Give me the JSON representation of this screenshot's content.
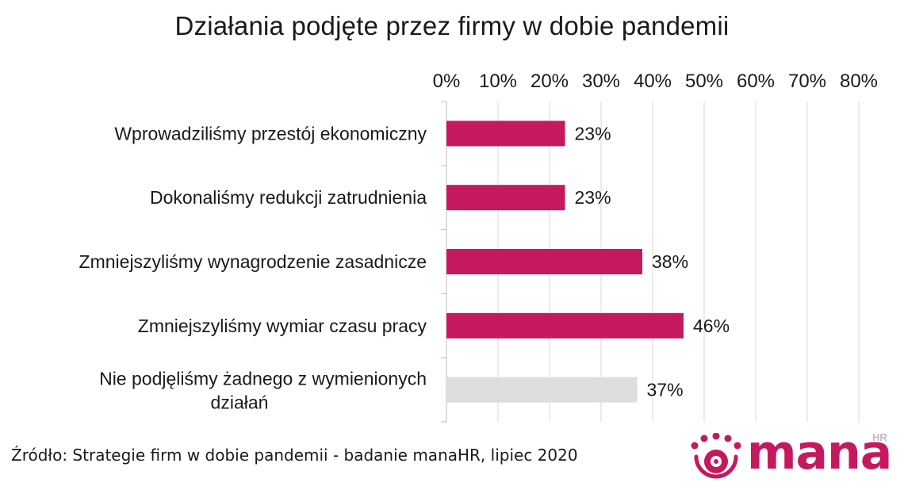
{
  "chart_data": {
    "type": "bar",
    "orientation": "horizontal",
    "title": "Działania podjęte przez firmy w dobie pandemii",
    "categories": [
      "Wprowadziliśmy przestój ekonomiczny",
      "Dokonaliśmy redukcji zatrudnienia",
      "Zmniejszyliśmy wynagrodzenie zasadnicze",
      "Zmniejszyliśmy wymiar czasu pracy",
      "Nie podjęliśmy żadnego z wymienionych działań"
    ],
    "values": [
      23,
      23,
      38,
      46,
      37
    ],
    "data_labels": [
      "23%",
      "23%",
      "38%",
      "46%",
      "37%"
    ],
    "bar_colors": [
      "#c5195f",
      "#c5195f",
      "#c5195f",
      "#c5195f",
      "#dddddd"
    ],
    "xlim": [
      0,
      80
    ],
    "x_ticks": [
      0,
      10,
      20,
      30,
      40,
      50,
      60,
      70,
      80
    ],
    "x_tick_labels": [
      "0%",
      "10%",
      "20%",
      "30%",
      "40%",
      "50%",
      "60%",
      "70%",
      "80%"
    ],
    "x_axis_position": "top",
    "grid": true,
    "legend": "none"
  },
  "source": "Źródło: Strategie firm w dobie pandemii - badanie manaHR, lipiec 2020",
  "logo": {
    "word": "mana",
    "sup": "HR",
    "color": "#c5195f",
    "icon": "sun-face-logo-icon"
  }
}
